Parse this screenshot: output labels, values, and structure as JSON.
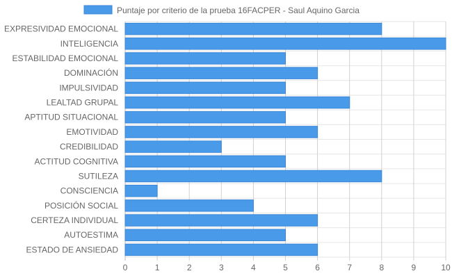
{
  "chart_data": {
    "type": "bar",
    "orientation": "horizontal",
    "title": "",
    "xlabel": "",
    "ylabel": "",
    "xlim": [
      0,
      10
    ],
    "x_ticks": [
      0,
      1,
      2,
      3,
      4,
      5,
      6,
      7,
      8,
      9,
      10
    ],
    "grid": true,
    "legend_position": "top-center",
    "categories": [
      "EXPRESIVIDAD EMOCIONAL",
      "INTELIGENCIA",
      "ESTABILIDAD EMOCIONAL",
      "DOMINACIÓN",
      "IMPULSIVIDAD",
      "LEALTAD GRUPAL",
      "APTITUD SITUACIONAL",
      "EMOTIVIDAD",
      "CREDIBILIDAD",
      "ACTITUD COGNITIVA",
      "SUTILEZA",
      "CONSCIENCIA",
      "POSICIÓN SOCIAL",
      "CERTEZA INDIVIDUAL",
      "AUTOESTIMA",
      "ESTADO DE ANSIEDAD"
    ],
    "series": [
      {
        "name": "Puntaje por criterio de la prueba 16FACPER - Saul Aquino Garcia",
        "values": [
          8,
          10,
          5,
          6,
          5,
          7,
          5,
          6,
          3,
          5,
          8,
          1,
          4,
          6,
          5,
          6
        ],
        "color": "#4a9aea",
        "border_color": "#3a86d8"
      }
    ]
  }
}
